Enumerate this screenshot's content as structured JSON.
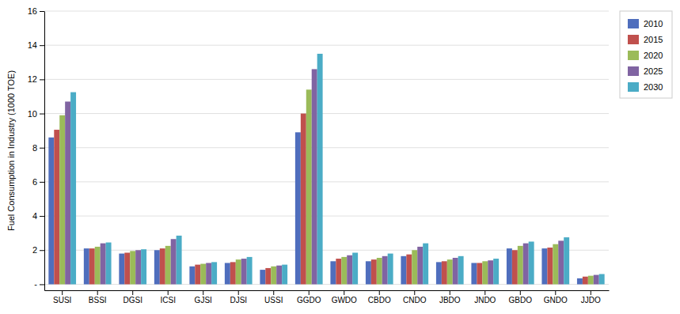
{
  "chart_data": {
    "type": "bar",
    "ylabel": "Fuel Consumption in Industry (1000 TOE)",
    "categories": [
      "SUSI",
      "BSSI",
      "DGSI",
      "ICSI",
      "GJSI",
      "DJSI",
      "USSI",
      "GGDO",
      "GWDO",
      "CBDO",
      "CNDO",
      "JBDO",
      "JNDO",
      "GBDO",
      "GNDO",
      "JJDO"
    ],
    "series": [
      {
        "name": "2010",
        "color": "#4F6EBD",
        "values": [
          8.6,
          2.1,
          1.8,
          2.0,
          1.05,
          1.25,
          0.85,
          8.9,
          1.35,
          1.35,
          1.65,
          1.3,
          1.25,
          2.1,
          2.1,
          0.35
        ]
      },
      {
        "name": "2015",
        "color": "#C0504D",
        "values": [
          9.05,
          2.1,
          1.85,
          2.1,
          1.15,
          1.3,
          0.95,
          10.0,
          1.5,
          1.45,
          1.75,
          1.35,
          1.25,
          2.0,
          2.15,
          0.45
        ]
      },
      {
        "name": "2020",
        "color": "#9BBB59",
        "values": [
          9.9,
          2.2,
          1.95,
          2.25,
          1.2,
          1.45,
          1.05,
          11.4,
          1.6,
          1.55,
          2.0,
          1.45,
          1.35,
          2.25,
          2.35,
          0.5
        ]
      },
      {
        "name": "2025",
        "color": "#8064A2",
        "values": [
          10.7,
          2.4,
          2.0,
          2.65,
          1.25,
          1.5,
          1.1,
          12.6,
          1.7,
          1.65,
          2.2,
          1.55,
          1.4,
          2.4,
          2.55,
          0.55
        ]
      },
      {
        "name": "2030",
        "color": "#4BACC6",
        "values": [
          11.25,
          2.45,
          2.05,
          2.85,
          1.3,
          1.6,
          1.15,
          13.5,
          1.85,
          1.8,
          2.4,
          1.65,
          1.5,
          2.5,
          2.75,
          0.6
        ]
      }
    ],
    "ylim": [
      -0.35,
      16
    ],
    "yticks": [
      {
        "value": 0,
        "label": "-"
      },
      2,
      4,
      6,
      8,
      10,
      12,
      14,
      16
    ],
    "grid": true,
    "legend": "right"
  }
}
